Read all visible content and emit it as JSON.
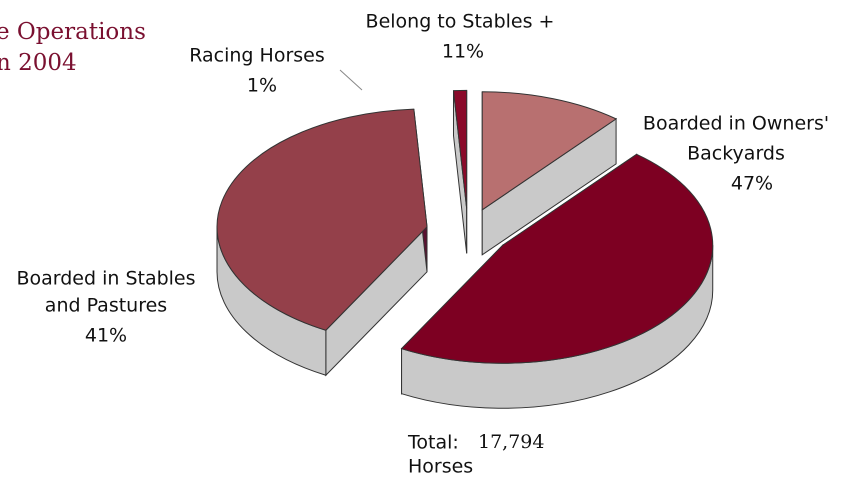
{
  "chart_data": {
    "type": "pie",
    "title_lines": [
      "e Operations",
      "n 2004"
    ],
    "categories": [
      [
        "Racing Horses"
      ],
      [
        "Belong to Stables +"
      ],
      [
        "Boarded in Owners'",
        "Backyards"
      ],
      [
        "Boarded in Stables",
        "and Pastures"
      ]
    ],
    "values": [
      1,
      11,
      47,
      41
    ],
    "value_labels": [
      "1%",
      "11%",
      "47%",
      "41%"
    ],
    "colors": [
      "#8a0a2a",
      "#b87070",
      "#7d0022",
      "#94404a"
    ],
    "total_label": "Total:",
    "total": "17,794",
    "total_unit": "Horses"
  }
}
